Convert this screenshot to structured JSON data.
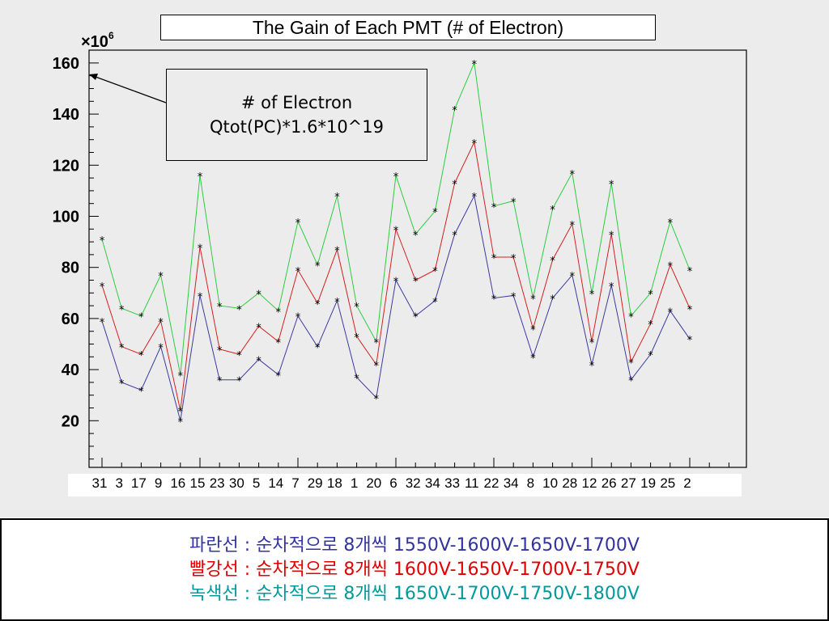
{
  "colors": {
    "blue": "#3b3b9e",
    "red": "#d42020",
    "green": "#2ecc40",
    "marker": "#000000",
    "legend_blue": "#3333a0",
    "legend_red": "#e00000",
    "legend_green": "#00999c"
  },
  "annotation": {
    "line1": "# of Electron",
    "line2": "Qtot(PC)*1.6*10^19"
  },
  "legend": {
    "blue": {
      "name": "파란선",
      "sep": " : ",
      "text": "순차적으로 8개씩 ",
      "voltages": "1550V-1600V-1650V-1700V"
    },
    "red": {
      "name": "빨강선",
      "sep": " : ",
      "text": "순차적으로 8개씩 ",
      "voltages": "1600V-1650V-1700V-1750V"
    },
    "green": {
      "name": "녹색선",
      "sep": " : ",
      "text": "순차적으로 8개씩 ",
      "voltages": "1650V-1700V-1750V-1800V"
    }
  },
  "chart_data": {
    "type": "line",
    "title": "The Gain of Each PMT (# of Electron)",
    "y_multiplier_base": "×10",
    "y_multiplier_exp": "6",
    "ylim": [
      0,
      170
    ],
    "y_ticks": [
      20,
      40,
      60,
      80,
      100,
      120,
      140,
      160
    ],
    "categories": [
      "31",
      "3",
      "17",
      "9",
      "16",
      "15",
      "23",
      "30",
      "5",
      "14",
      "7",
      "29",
      "18",
      "1",
      "20",
      "6",
      "32",
      "34",
      "33",
      "11",
      "22",
      "34",
      "8",
      "10",
      "28",
      "12",
      "26",
      "27",
      "19",
      "25",
      "2"
    ],
    "series": [
      {
        "color_key": "blue",
        "values": [
          59,
          35,
          32,
          49,
          20,
          69,
          36,
          36,
          44,
          38,
          61,
          49,
          67,
          37,
          29,
          75,
          61,
          67,
          93,
          108,
          68,
          69,
          45,
          68,
          77,
          42,
          73,
          36,
          46,
          63,
          52
        ]
      },
      {
        "color_key": "red",
        "values": [
          73,
          49,
          46,
          59,
          24,
          88,
          48,
          46,
          57,
          51,
          79,
          66,
          87,
          53,
          42,
          95,
          75,
          79,
          113,
          129,
          84,
          84,
          56,
          83,
          97,
          51,
          93,
          43,
          58,
          81,
          64
        ]
      },
      {
        "color_key": "green",
        "values": [
          91,
          64,
          61,
          77,
          38,
          116,
          65,
          64,
          70,
          63,
          98,
          81,
          108,
          65,
          51,
          116,
          93,
          102,
          142,
          160,
          104,
          106,
          68,
          103,
          117,
          70,
          113,
          61,
          70,
          98,
          79
        ]
      }
    ]
  }
}
